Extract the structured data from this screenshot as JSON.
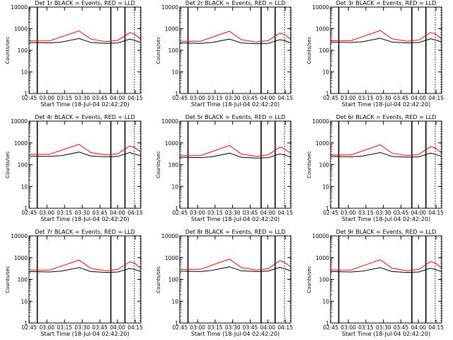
{
  "panel_common": {
    "title_suffix": "BLACK = Events, RED = LLD",
    "xlabel": "Start Time (18-Jul-04 02:42:20)",
    "ylabel": "Counts/sec",
    "x_tick_labels": [
      "02:45",
      "03:00",
      "03:15",
      "03:30",
      "03:45",
      "04:00",
      "04:15"
    ],
    "y_tick_labels": [
      "1",
      "10",
      "100",
      "1000",
      "10000"
    ]
  },
  "colors": {
    "events": "#000000",
    "lld": "#ff0000",
    "background": "#ffffff"
  },
  "chart_data": [
    {
      "type": "line",
      "title": "Det 1r BLACK = Events, RED = LLD",
      "x_range_min": [
        2.5,
        97.5
      ],
      "ylim": [
        1,
        10000
      ],
      "y_scale": "log",
      "series": [
        {
          "name": "BLACK = Events",
          "x_min": [
            2.5,
            20,
            30,
            45,
            55,
            68,
            78,
            88,
            92,
            97.5
          ],
          "y": [
            230,
            220,
            240,
            350,
            230,
            210,
            220,
            330,
            290,
            230
          ]
        },
        {
          "name": "RED = LLD",
          "x_min": [
            2.5,
            20,
            30,
            45,
            55,
            68,
            78,
            88,
            92,
            97.5
          ],
          "y": [
            270,
            270,
            420,
            800,
            330,
            250,
            290,
            650,
            560,
            330
          ]
        }
      ],
      "vlines_min": [
        9.5,
        72,
        84
      ],
      "dotted_vlines_min": [
        92,
        97
      ]
    },
    {
      "type": "line",
      "title": "Det 2r BLACK = Events, RED = LLD",
      "x_range_min": [
        2.5,
        97.5
      ],
      "ylim": [
        1,
        10000
      ],
      "y_scale": "log",
      "series": [
        {
          "name": "BLACK = Events",
          "x_min": [
            2.5,
            20,
            30,
            45,
            55,
            68,
            78,
            88,
            92,
            97.5
          ],
          "y": [
            220,
            210,
            230,
            330,
            220,
            200,
            210,
            310,
            280,
            220
          ]
        },
        {
          "name": "RED = LLD",
          "x_min": [
            2.5,
            20,
            30,
            45,
            55,
            68,
            78,
            88,
            92,
            97.5
          ],
          "y": [
            260,
            260,
            400,
            760,
            310,
            240,
            280,
            620,
            540,
            320
          ]
        }
      ],
      "vlines_min": [
        9.5,
        72,
        84
      ],
      "dotted_vlines_min": [
        92,
        97
      ]
    },
    {
      "type": "line",
      "title": "Det 3r BLACK = Events, RED = LLD",
      "x_range_min": [
        2.5,
        97.5
      ],
      "ylim": [
        1,
        10000
      ],
      "y_scale": "log",
      "series": [
        {
          "name": "BLACK = Events",
          "x_min": [
            2.5,
            20,
            30,
            45,
            55,
            68,
            78,
            88,
            92,
            97.5
          ],
          "y": [
            240,
            230,
            250,
            360,
            240,
            220,
            230,
            340,
            300,
            240
          ]
        },
        {
          "name": "RED = LLD",
          "x_min": [
            2.5,
            20,
            30,
            45,
            55,
            68,
            78,
            88,
            92,
            97.5
          ],
          "y": [
            280,
            280,
            430,
            820,
            340,
            260,
            300,
            660,
            570,
            340
          ]
        }
      ],
      "vlines_min": [
        9.5,
        72,
        84
      ],
      "dotted_vlines_min": [
        92,
        97
      ]
    },
    {
      "type": "line",
      "title": "Det 4r BLACK = Events, RED = LLD",
      "x_range_min": [
        2.5,
        97.5
      ],
      "ylim": [
        1,
        10000
      ],
      "y_scale": "log",
      "series": [
        {
          "name": "BLACK = Events",
          "x_min": [
            2.5,
            20,
            30,
            45,
            55,
            68,
            78,
            88,
            92,
            97.5
          ],
          "y": [
            250,
            240,
            260,
            380,
            250,
            230,
            240,
            360,
            310,
            250
          ]
        },
        {
          "name": "RED = LLD",
          "x_min": [
            2.5,
            20,
            30,
            45,
            55,
            68,
            78,
            88,
            92,
            97.5
          ],
          "y": [
            300,
            300,
            460,
            860,
            360,
            280,
            320,
            720,
            620,
            380
          ]
        }
      ],
      "vlines_min": [
        9.5,
        72,
        84
      ],
      "dotted_vlines_min": [
        92,
        97
      ]
    },
    {
      "type": "line",
      "title": "Det 5r BLACK = Events, RED = LLD",
      "x_range_min": [
        2.5,
        97.5
      ],
      "ylim": [
        1,
        10000
      ],
      "y_scale": "log",
      "series": [
        {
          "name": "BLACK = Events",
          "x_min": [
            2.5,
            20,
            30,
            45,
            55,
            68,
            78,
            88,
            92,
            97.5
          ],
          "y": [
            220,
            210,
            230,
            340,
            220,
            200,
            210,
            310,
            280,
            220
          ]
        },
        {
          "name": "RED = LLD",
          "x_min": [
            2.5,
            20,
            30,
            45,
            55,
            68,
            78,
            88,
            92,
            97.5
          ],
          "y": [
            260,
            260,
            400,
            760,
            310,
            240,
            280,
            640,
            540,
            330
          ]
        }
      ],
      "vlines_min": [
        9.5,
        72,
        84
      ],
      "dotted_vlines_min": [
        92,
        97
      ]
    },
    {
      "type": "line",
      "title": "Det 6r BLACK = Events, RED = LLD",
      "x_range_min": [
        2.5,
        97.5
      ],
      "ylim": [
        1,
        10000
      ],
      "y_scale": "log",
      "series": [
        {
          "name": "BLACK = Events",
          "x_min": [
            2.5,
            20,
            30,
            45,
            55,
            68,
            78,
            88,
            92,
            97.5
          ],
          "y": [
            240,
            230,
            250,
            360,
            240,
            220,
            230,
            340,
            300,
            240
          ]
        },
        {
          "name": "RED = LLD",
          "x_min": [
            2.5,
            20,
            30,
            45,
            55,
            68,
            78,
            88,
            92,
            97.5
          ],
          "y": [
            280,
            280,
            430,
            820,
            340,
            260,
            300,
            680,
            580,
            350
          ]
        }
      ],
      "vlines_min": [
        9.5,
        72,
        84
      ],
      "dotted_vlines_min": [
        92,
        97
      ]
    },
    {
      "type": "line",
      "title": "Det 7r BLACK = Events, RED = LLD",
      "x_range_min": [
        2.5,
        97.5
      ],
      "ylim": [
        1,
        10000
      ],
      "y_scale": "log",
      "series": [
        {
          "name": "BLACK = Events",
          "x_min": [
            2.5,
            20,
            30,
            45,
            55,
            68,
            78,
            88,
            92,
            97.5
          ],
          "y": [
            230,
            220,
            240,
            350,
            230,
            210,
            220,
            320,
            290,
            230
          ]
        },
        {
          "name": "RED = LLD",
          "x_min": [
            2.5,
            20,
            30,
            45,
            55,
            68,
            78,
            88,
            92,
            97.5
          ],
          "y": [
            270,
            270,
            410,
            780,
            320,
            250,
            290,
            650,
            560,
            330
          ]
        }
      ],
      "vlines_min": [
        9.5,
        72,
        84
      ],
      "dotted_vlines_min": [
        92,
        97
      ]
    },
    {
      "type": "line",
      "title": "Det 8r BLACK = Events, RED = LLD",
      "x_range_min": [
        2.5,
        97.5
      ],
      "ylim": [
        1,
        10000
      ],
      "y_scale": "log",
      "series": [
        {
          "name": "BLACK = Events",
          "x_min": [
            2.5,
            20,
            30,
            45,
            55,
            68,
            78,
            88,
            92,
            97.5
          ],
          "y": [
            240,
            230,
            260,
            380,
            250,
            230,
            240,
            360,
            310,
            250
          ]
        },
        {
          "name": "RED = LLD",
          "x_min": [
            2.5,
            20,
            30,
            45,
            55,
            68,
            78,
            88,
            92,
            97.5
          ],
          "y": [
            290,
            290,
            450,
            860,
            350,
            270,
            310,
            720,
            610,
            370
          ]
        }
      ],
      "vlines_min": [
        9.5,
        72,
        84
      ],
      "dotted_vlines_min": [
        92,
        97
      ]
    },
    {
      "type": "line",
      "title": "Det 9r BLACK = Events, RED = LLD",
      "x_range_min": [
        2.5,
        97.5
      ],
      "ylim": [
        1,
        10000
      ],
      "y_scale": "log",
      "series": [
        {
          "name": "BLACK = Events",
          "x_min": [
            2.5,
            20,
            30,
            45,
            55,
            68,
            78,
            88,
            92,
            97.5
          ],
          "y": [
            230,
            220,
            240,
            350,
            230,
            210,
            220,
            330,
            290,
            230
          ]
        },
        {
          "name": "RED = LLD",
          "x_min": [
            2.5,
            20,
            30,
            45,
            55,
            68,
            78,
            88,
            92,
            97.5
          ],
          "y": [
            270,
            270,
            420,
            800,
            330,
            250,
            290,
            660,
            560,
            340
          ]
        }
      ],
      "vlines_min": [
        9.5,
        72,
        84
      ],
      "dotted_vlines_min": [
        92,
        97
      ]
    }
  ]
}
